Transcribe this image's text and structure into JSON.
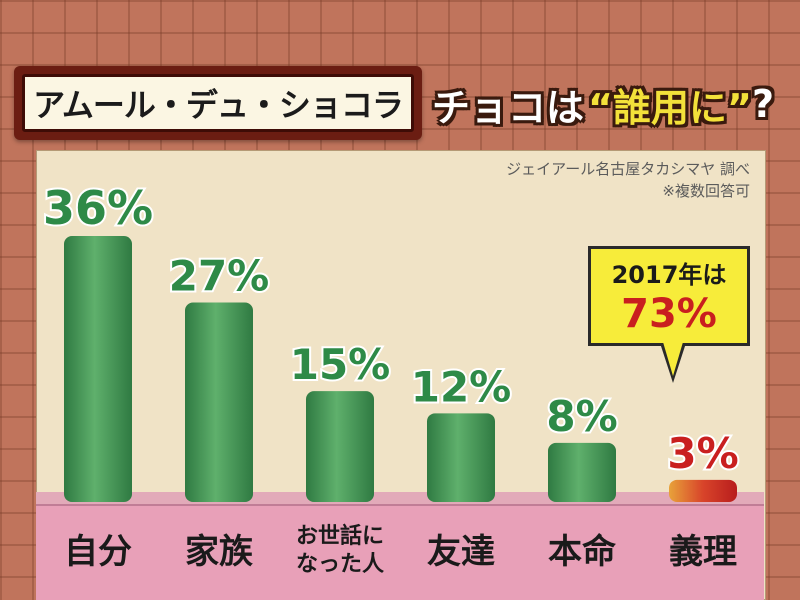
{
  "header": {
    "title": "アムール・デュ・ショコラ",
    "question_prefix": "チョコは",
    "question_highlight": "“誰用に”",
    "question_suffix": "?"
  },
  "source": {
    "line1": "ジェイアール名古屋タカシマヤ 調べ",
    "line2": "※複数回答可"
  },
  "callout": {
    "line1": "2017年は",
    "line2": "73%"
  },
  "colors": {
    "bar_green": "#3f8f52",
    "bar_green_light": "#6bbf78",
    "value_green": "#2e8a47",
    "highlight_red": "#c91f1f",
    "label_strip": "#e8a0b8"
  },
  "chart_data": {
    "type": "bar",
    "categories": [
      "自分",
      "家族",
      "お世話になった人",
      "友達",
      "本命",
      "義理"
    ],
    "category_labels": [
      [
        "自分"
      ],
      [
        "家族"
      ],
      [
        "お世話に",
        "なった人"
      ],
      [
        "友達"
      ],
      [
        "本命"
      ],
      [
        "義理"
      ]
    ],
    "values": [
      36,
      27,
      15,
      12,
      8,
      3
    ],
    "value_labels": [
      "36%",
      "27%",
      "15%",
      "12%",
      "8%",
      "3%"
    ],
    "unit": "%",
    "ylim": [
      0,
      36
    ],
    "highlight_index": 5,
    "title": "",
    "xlabel": "",
    "ylabel": ""
  }
}
